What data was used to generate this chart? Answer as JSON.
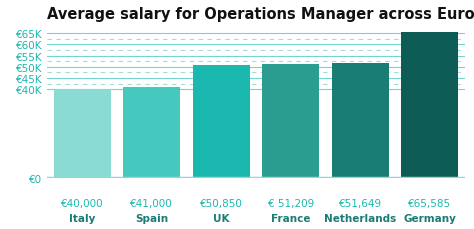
{
  "title": "Average salary for Operations Manager across Europe",
  "categories": [
    "Italy",
    "Spain",
    "UK",
    "France",
    "Netherlands",
    "Germany"
  ],
  "values": [
    40000,
    41000,
    50850,
    51209,
    51649,
    65585
  ],
  "value_labels": [
    "€40,000",
    "€41,000",
    "€50,850",
    "€ 51,209",
    "€51,649",
    "€65,585"
  ],
  "bar_colors": [
    "#8adbd4",
    "#45c9bf",
    "#1ab8ae",
    "#2a9d90",
    "#1a7d74",
    "#0d5c55"
  ],
  "baseline_color": "#8adbd4",
  "ylim": [
    0,
    68000
  ],
  "yticks": [
    0,
    40000,
    45000,
    50000,
    55000,
    60000,
    65000
  ],
  "ytick_labels": [
    "€0",
    "€40K",
    "€45K",
    "€50K",
    "€55K",
    "€60K",
    "€65K"
  ],
  "ytick_color": "#1ab8ae",
  "solid_grid_color": "#1ab8ae",
  "dashed_grid_color": "#a0dcd8",
  "background_color": "#ffffff",
  "title_fontsize": 10.5,
  "value_label_color": "#1ab8ae",
  "country_label_color": "#1a7d74",
  "label_fontsize": 7.5,
  "tick_fontsize": 7.5
}
